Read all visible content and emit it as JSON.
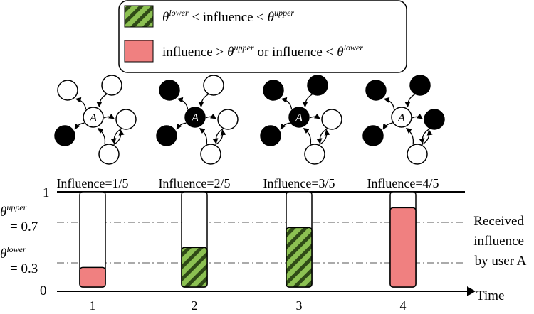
{
  "legend": {
    "within": {
      "theta": "θ",
      "lower": "lower",
      "leq1": "≤ influence ≤",
      "upper": "upper",
      "color": "#8cc152"
    },
    "outside": {
      "pre": "influence >",
      "upper": "upper",
      "mid": "or influence <",
      "lower": "lower",
      "color": "#f08080"
    }
  },
  "node_label": "A",
  "networks": [
    {
      "center_black": false,
      "black_nodes": [
        3
      ]
    },
    {
      "center_black": true,
      "black_nodes": [
        0,
        3
      ]
    },
    {
      "center_black": true,
      "black_nodes": [
        0,
        1,
        3
      ]
    },
    {
      "center_black": false,
      "black_nodes": [
        0,
        1,
        2,
        3
      ]
    }
  ],
  "axis": {
    "tick_1": "1",
    "tick_0": "0",
    "upper_label": {
      "theta": "θ",
      "sup": "upper",
      "value": "= 0.7"
    },
    "lower_label": {
      "theta": "θ",
      "sup": "lower",
      "value": "= 0.3"
    },
    "time_label": "Time",
    "right_label": [
      "Received",
      "influence",
      "by user A"
    ]
  },
  "chart_data": {
    "type": "bar",
    "categories": [
      "1",
      "2",
      "3",
      "4"
    ],
    "values": [
      0.2,
      0.4,
      0.6,
      0.8
    ],
    "value_labels": [
      "Influence=1/5",
      "Influence=2/5",
      "Influence=3/5",
      "Influence=4/5"
    ],
    "status": [
      "outside",
      "within",
      "within",
      "outside"
    ],
    "thresholds": {
      "lower": 0.3,
      "upper": 0.7
    },
    "ylim": [
      0,
      1
    ],
    "xlabel": "Time",
    "ylabel": "Received influence by user A"
  }
}
